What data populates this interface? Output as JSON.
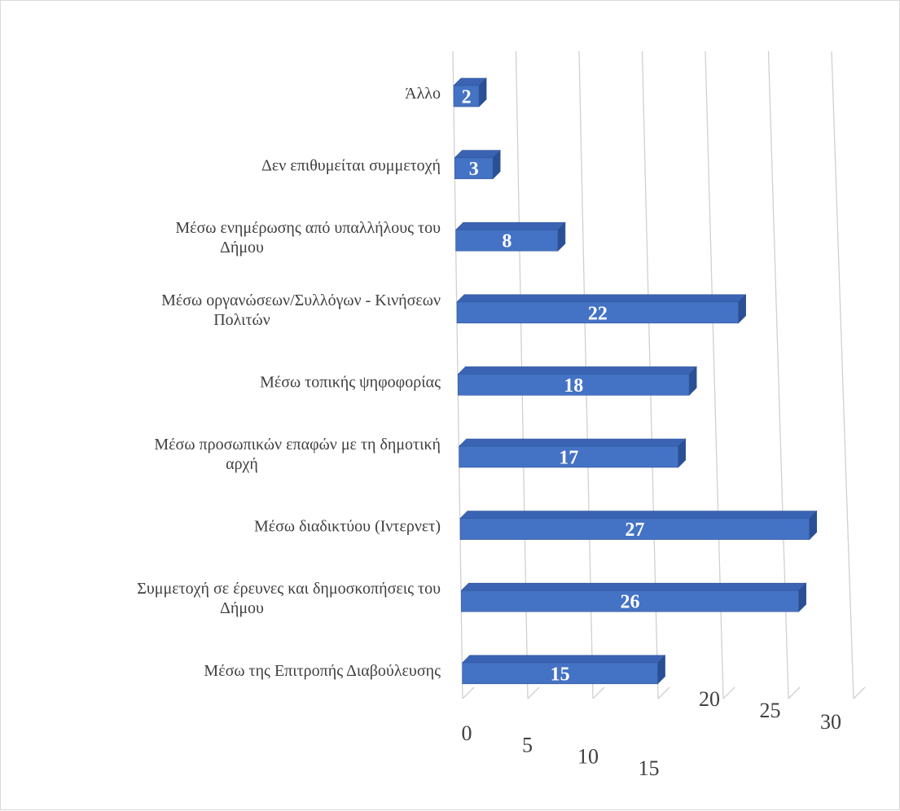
{
  "chart_data": {
    "type": "bar",
    "orientation": "horizontal",
    "three_d": true,
    "categories": [
      "Άλλο",
      "Δεν επιθυμείται συμμετοχή",
      "Μέσω ενημέρωσης από υπαλλήλους του Δήμου",
      "Μέσω οργανώσεων/Συλλόγων - Κινήσεων Πολιτών",
      "Μέσω τοπικής ψηφοφορίας",
      "Μέσω προσωπικών επαφών με τη δημοτική αρχή",
      "Μέσω διαδικτύου (Ιντερνετ)",
      "Συμμετοχή σε έρευνες και δημοσκοπήσεις του Δήμου",
      "Μέσω της Επιτροπής Διαβούλευσης"
    ],
    "values": [
      2,
      3,
      8,
      22,
      18,
      17,
      27,
      26,
      15
    ],
    "data_labels": [
      "2",
      "3",
      "8",
      "22",
      "18",
      "17",
      "27",
      "26",
      "15"
    ],
    "category_label_lines": [
      [
        "Άλλο"
      ],
      [
        "Δεν επιθυμείται συμμετοχή"
      ],
      [
        "Μέσω ενημέρωσης από υπαλλήλους του",
        "Δήμου"
      ],
      [
        "Μέσω οργανώσεων/Συλλόγων - Κινήσεων",
        "Πολιτών"
      ],
      [
        "Μέσω τοπικής ψηφοφορίας"
      ],
      [
        "Μέσω προσωπικών επαφών με τη δημοτική",
        "αρχή"
      ],
      [
        "Μέσω διαδικτύου (Ιντερνετ)"
      ],
      [
        "Συμμετοχή σε έρευνες και δημοσκοπήσεις του",
        "Δήμου"
      ],
      [
        "Μέσω της Επιτροπής Διαβούλευσης"
      ]
    ],
    "x_ticks": [
      "0",
      "5",
      "10",
      "15",
      "20",
      "25",
      "30"
    ],
    "xlim": [
      0,
      30
    ],
    "title": "",
    "xlabel": "",
    "ylabel": "",
    "grid": true,
    "legend": "none",
    "colors": {
      "bar_front": "#4472c4",
      "bar_top": "#3a64b3",
      "bar_side": "#2a4f95",
      "bar_edge": "#2f5597",
      "grid": "#d0d0d0",
      "label_text": "#404040",
      "data_label_text": "#ffffff"
    }
  }
}
